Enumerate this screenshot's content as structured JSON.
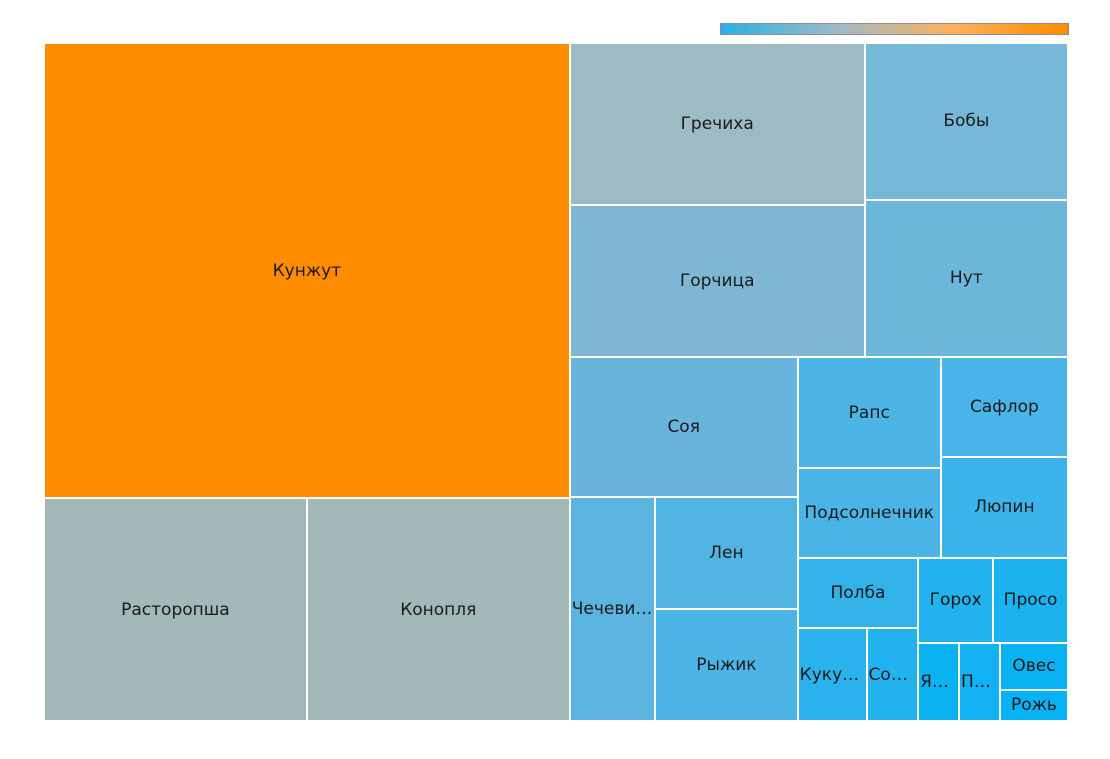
{
  "chart_data": {
    "type": "treemap",
    "title": "",
    "colorbar": {
      "colors": [
        "#2ab0e6",
        "#9cbac6",
        "#ffb060",
        "#ff8c00"
      ]
    },
    "items": [
      {
        "label": "Кунжут",
        "value": 225,
        "color": "#ff8c00"
      },
      {
        "label": "Расторопша",
        "value": 55,
        "color": "#a3b8b8"
      },
      {
        "label": "Конопля",
        "value": 55,
        "color": "#a3b8b8"
      },
      {
        "label": "Гречиха",
        "value": 45,
        "color": "#9dbbc3"
      },
      {
        "label": "Горчица",
        "value": 42,
        "color": "#7db7d3"
      },
      {
        "label": "Бобы",
        "value": 30,
        "color": "#76b8d8"
      },
      {
        "label": "Нут",
        "value": 30,
        "color": "#6db6db"
      },
      {
        "label": "Соя",
        "value": 30,
        "color": "#69b4db"
      },
      {
        "label": "Чечевица",
        "value": 18,
        "color": "#5bb4e0"
      },
      {
        "label": "Лен",
        "value": 15,
        "color": "#52b4e3"
      },
      {
        "label": "Рыжик",
        "value": 15,
        "color": "#4db4e6"
      },
      {
        "label": "Рапс",
        "value": 15,
        "color": "#4db4e6"
      },
      {
        "label": "Подсолнечник",
        "value": 12,
        "color": "#4ab4e6"
      },
      {
        "label": "Сафлор",
        "value": 12,
        "color": "#48b4e8"
      },
      {
        "label": "Люпин",
        "value": 12,
        "color": "#3bb4eb"
      },
      {
        "label": "Полба",
        "value": 8,
        "color": "#33b2ea"
      },
      {
        "label": "Кукуруза",
        "value": 6,
        "color": "#2ab2ed"
      },
      {
        "label": "Сорго",
        "value": 4.5,
        "color": "#22b2ef"
      },
      {
        "label": "Горох",
        "value": 6,
        "color": "#21b2ef"
      },
      {
        "label": "Просо",
        "value": 6,
        "color": "#1bb2f0"
      },
      {
        "label": "Ячмень",
        "value": 3,
        "color": "#0ab2f2"
      },
      {
        "label": "Пшеница",
        "value": 3,
        "color": "#12b2f2"
      },
      {
        "label": "Овес",
        "value": 3,
        "color": "#0ab2f4"
      },
      {
        "label": "Рожь",
        "value": 2,
        "color": "#05b2f5"
      }
    ]
  }
}
